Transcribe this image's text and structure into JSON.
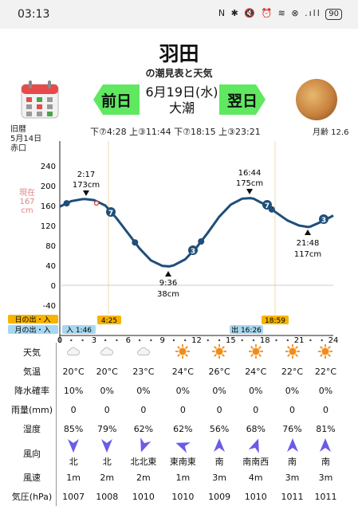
{
  "status_bar": {
    "time": "03:13",
    "icons": "N ✱ 🔇 ⏰ ≋ ⊗ .ıll",
    "battery": "90"
  },
  "header": {
    "title": "羽田",
    "subtitle": "の潮見表と天気",
    "prev_label": "前日",
    "next_label": "翌日",
    "date": "6月19日(水)",
    "tide_type": "大潮",
    "tides_line": "下⑦4:28 上③11:44 下⑦18:15 上③23:21",
    "lunar_date": "旧暦",
    "lunar_day": "5月14日",
    "rokuyo": "赤口",
    "moon_age": "月齢 12.6"
  },
  "chart": {
    "now_label_1": "現在",
    "now_label_2": "167",
    "now_label_3": "cm",
    "y_ticks": [
      "240",
      "200",
      "160",
      "120",
      "80",
      "40",
      "0",
      "-40"
    ],
    "x_ticks": [
      "0",
      "3",
      "6",
      "9",
      "12",
      "15",
      "18",
      "21",
      "24"
    ],
    "high1_time": "2:17",
    "high1_height": "173cm",
    "low1_time": "9:36",
    "low1_height": "38cm",
    "high2_time": "16:44",
    "high2_height": "175cm",
    "low2_time": "21:48",
    "low2_height": "117cm",
    "sun_label": "日の出・入",
    "moon_label": "月の出・入",
    "sunrise": "4:25",
    "sunset": "18:59",
    "moonrise_text": "入 1:46",
    "moonset_text": "出 16:26"
  },
  "chart_data": {
    "type": "line",
    "title": "",
    "xlabel": "",
    "ylabel": "",
    "xlim": [
      0,
      24
    ],
    "ylim": [
      -40,
      240
    ],
    "series": [
      {
        "values": [
          [
            0,
            158
          ],
          [
            1,
            169
          ],
          [
            2,
            173
          ],
          [
            2.28,
            173
          ],
          [
            3,
            171
          ],
          [
            4,
            160
          ],
          [
            5,
            134
          ],
          [
            6,
            104
          ],
          [
            7,
            74
          ],
          [
            8,
            50
          ],
          [
            9,
            39
          ],
          [
            9.6,
            38
          ],
          [
            10,
            40
          ],
          [
            11,
            52
          ],
          [
            12,
            76
          ],
          [
            13,
            106
          ],
          [
            14,
            138
          ],
          [
            15,
            162
          ],
          [
            16,
            174
          ],
          [
            16.73,
            175
          ],
          [
            17,
            174
          ],
          [
            18,
            162
          ],
          [
            19,
            146
          ],
          [
            20,
            130
          ],
          [
            21,
            120
          ],
          [
            21.8,
            117
          ],
          [
            22,
            118
          ],
          [
            23,
            128
          ],
          [
            24,
            140
          ]
        ]
      }
    ]
  },
  "weather": {
    "labels": {
      "weather": "天気",
      "temp": "気温",
      "precip": "降水確率",
      "rain": "雨量(mm)",
      "humidity": "湿度",
      "wind_dir": "風向",
      "wind_speed": "風速",
      "pressure": "気圧(hPa)"
    },
    "cols": [
      {
        "icon": "cloud-icon",
        "temp": "20°C",
        "precip": "10%",
        "rain": "0",
        "humidity": "85%",
        "dir": "北",
        "dir_deg": 180,
        "speed": "1m",
        "pressure": "1007"
      },
      {
        "icon": "cloud-icon",
        "temp": "20°C",
        "precip": "0%",
        "rain": "0",
        "humidity": "79%",
        "dir": "北",
        "dir_deg": 180,
        "speed": "2m",
        "pressure": "1008"
      },
      {
        "icon": "cloud-icon",
        "temp": "23°C",
        "precip": "0%",
        "rain": "0",
        "humidity": "62%",
        "dir": "北北東",
        "dir_deg": 200,
        "speed": "2m",
        "pressure": "1010"
      },
      {
        "icon": "sun-icon",
        "temp": "24°C",
        "precip": "0%",
        "rain": "0",
        "humidity": "62%",
        "dir": "東南東",
        "dir_deg": 290,
        "speed": "1m",
        "pressure": "1010"
      },
      {
        "icon": "sun-icon",
        "temp": "26°C",
        "precip": "0%",
        "rain": "0",
        "humidity": "56%",
        "dir": "南",
        "dir_deg": 0,
        "speed": "3m",
        "pressure": "1009"
      },
      {
        "icon": "sun-icon",
        "temp": "24°C",
        "precip": "0%",
        "rain": "0",
        "humidity": "68%",
        "dir": "南南西",
        "dir_deg": 20,
        "speed": "4m",
        "pressure": "1010"
      },
      {
        "icon": "sun-icon",
        "temp": "22°C",
        "precip": "0%",
        "rain": "0",
        "humidity": "76%",
        "dir": "南",
        "dir_deg": 0,
        "speed": "3m",
        "pressure": "1011"
      },
      {
        "icon": "sun-icon",
        "temp": "22°C",
        "precip": "0%",
        "rain": "0",
        "humidity": "81%",
        "dir": "南",
        "dir_deg": 0,
        "speed": "3m",
        "pressure": "1011"
      }
    ]
  },
  "colors": {
    "tide_line": "#1f4e79",
    "nav_button": "#5fe860",
    "sun_icon": "#f08c1c",
    "wind_arrow": "#6a5be8",
    "accent_orange": "#f6b400",
    "accent_blue": "#a8d8f0"
  }
}
